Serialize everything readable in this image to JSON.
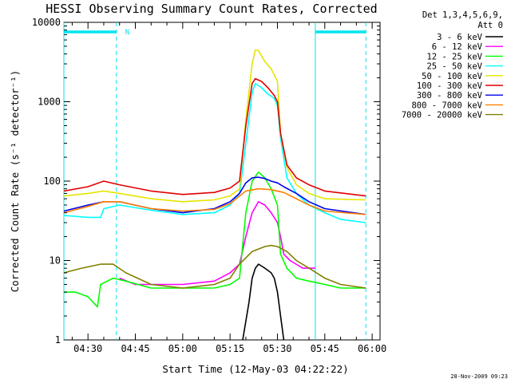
{
  "chart_data": {
    "type": "line",
    "title": "HESSI Observing Summary Count Rates, Corrected",
    "xlabel": "Start Time (12-May-03 04:22:22)",
    "ylabel": "Corrected Count Rate (s⁻¹ detector⁻¹)",
    "yscale": "log",
    "ylim": [
      1,
      10000
    ],
    "xlim": [
      "04:22:22",
      "06:02:30"
    ],
    "x_ticks": [
      "04:30",
      "04:45",
      "05:00",
      "05:15",
      "05:30",
      "05:45",
      "06:00"
    ],
    "y_ticks": [
      "1",
      "10",
      "100",
      "1000",
      "10000"
    ],
    "legend_placement": "right",
    "legend_header": [
      "Det 1,3,4,5,6,9,",
      "Att 0"
    ],
    "timestamp": "28-Nov-2009 09:23",
    "annotations": {
      "bars": [
        {
          "label": "",
          "start": "04:22:22",
          "end": "04:39:00",
          "color": "#00e5ee"
        },
        {
          "label": "N",
          "start": "04:40:30",
          "end": "04:40:30",
          "color": "#00e5ee"
        },
        {
          "label": "",
          "start": "05:42:00",
          "end": "05:58:00",
          "color": "#00e5ee"
        }
      ],
      "vlines_solid": [
        "04:22:22",
        "05:42:00"
      ],
      "vlines_dashed": [
        "04:39:00",
        "05:58:00"
      ]
    },
    "series": [
      {
        "name": "3 - 6 keV",
        "color": "#000000",
        "points": [
          [
            "05:19",
            1
          ],
          [
            "05:21",
            3
          ],
          [
            "05:22",
            6
          ],
          [
            "05:23",
            8
          ],
          [
            "05:24",
            9
          ],
          [
            "05:25",
            8.5
          ],
          [
            "05:26",
            8
          ],
          [
            "05:27",
            7.5
          ],
          [
            "05:28",
            7
          ],
          [
            "05:29",
            6
          ],
          [
            "05:30",
            4
          ],
          [
            "05:31",
            2
          ],
          [
            "05:32",
            1
          ]
        ]
      },
      {
        "name": "6 - 12 keV",
        "color": "#ff00ff",
        "points": [
          [
            "04:40",
            6
          ],
          [
            "04:45",
            5
          ],
          [
            "04:50",
            5
          ],
          [
            "05:00",
            5
          ],
          [
            "05:10",
            5.5
          ],
          [
            "05:15",
            7
          ],
          [
            "05:18",
            9
          ],
          [
            "05:20",
            20
          ],
          [
            "05:22",
            40
          ],
          [
            "05:24",
            55
          ],
          [
            "05:26",
            50
          ],
          [
            "05:28",
            40
          ],
          [
            "05:30",
            30
          ],
          [
            "05:31",
            20
          ],
          [
            "05:32",
            12
          ],
          [
            "05:34",
            10
          ],
          [
            "05:38",
            8
          ],
          [
            "05:42",
            8
          ]
        ]
      },
      {
        "name": "12 - 25 keV",
        "color": "#00ff00",
        "points": [
          [
            "04:22:22",
            4
          ],
          [
            "04:26",
            4
          ],
          [
            "04:30",
            3.5
          ],
          [
            "04:33",
            2.6
          ],
          [
            "04:34",
            5
          ],
          [
            "04:38",
            6
          ],
          [
            "04:42",
            5.5
          ],
          [
            "04:50",
            4.5
          ],
          [
            "05:00",
            4.5
          ],
          [
            "05:10",
            4.5
          ],
          [
            "05:15",
            5
          ],
          [
            "05:18",
            6
          ],
          [
            "05:20",
            40
          ],
          [
            "05:22",
            100
          ],
          [
            "05:24",
            130
          ],
          [
            "05:26",
            110
          ],
          [
            "05:28",
            80
          ],
          [
            "05:30",
            50
          ],
          [
            "05:31",
            12
          ],
          [
            "05:33",
            8
          ],
          [
            "05:36",
            6
          ],
          [
            "05:40",
            5.5
          ],
          [
            "05:45",
            5
          ],
          [
            "05:50",
            4.5
          ],
          [
            "05:58",
            4.5
          ]
        ]
      },
      {
        "name": "25 - 50 keV",
        "color": "#00ffff",
        "points": [
          [
            "04:22:22",
            37
          ],
          [
            "04:30",
            35
          ],
          [
            "04:34",
            35
          ],
          [
            "04:35",
            45
          ],
          [
            "04:40",
            50
          ],
          [
            "04:50",
            43
          ],
          [
            "05:00",
            38
          ],
          [
            "05:10",
            40
          ],
          [
            "05:15",
            50
          ],
          [
            "05:18",
            70
          ],
          [
            "05:20",
            300
          ],
          [
            "05:22",
            1300
          ],
          [
            "05:23",
            1700
          ],
          [
            "05:25",
            1500
          ],
          [
            "05:27",
            1250
          ],
          [
            "05:29",
            1100
          ],
          [
            "05:30",
            900
          ],
          [
            "05:31",
            350
          ],
          [
            "05:33",
            110
          ],
          [
            "05:36",
            70
          ],
          [
            "05:40",
            50
          ],
          [
            "05:45",
            40
          ],
          [
            "05:50",
            33
          ],
          [
            "05:58",
            30
          ]
        ]
      },
      {
        "name": "50 - 100 keV",
        "color": "#e5e500",
        "points": [
          [
            "04:22:22",
            65
          ],
          [
            "04:30",
            70
          ],
          [
            "04:35",
            75
          ],
          [
            "04:40",
            70
          ],
          [
            "04:50",
            60
          ],
          [
            "05:00",
            55
          ],
          [
            "05:10",
            58
          ],
          [
            "05:15",
            65
          ],
          [
            "05:18",
            80
          ],
          [
            "05:20",
            600
          ],
          [
            "05:22",
            3000
          ],
          [
            "05:23",
            4500
          ],
          [
            "05:24",
            4400
          ],
          [
            "05:26",
            3200
          ],
          [
            "05:28",
            2600
          ],
          [
            "05:30",
            1800
          ],
          [
            "05:31",
            400
          ],
          [
            "05:33",
            150
          ],
          [
            "05:36",
            90
          ],
          [
            "05:40",
            70
          ],
          [
            "05:45",
            60
          ],
          [
            "05:58",
            58
          ]
        ]
      },
      {
        "name": "100 - 300 keV",
        "color": "#e00000",
        "points": [
          [
            "04:22:22",
            75
          ],
          [
            "04:30",
            85
          ],
          [
            "04:35",
            100
          ],
          [
            "04:40",
            90
          ],
          [
            "04:50",
            75
          ],
          [
            "05:00",
            68
          ],
          [
            "05:10",
            72
          ],
          [
            "05:15",
            82
          ],
          [
            "05:18",
            100
          ],
          [
            "05:20",
            500
          ],
          [
            "05:22",
            1700
          ],
          [
            "05:23",
            1950
          ],
          [
            "05:25",
            1800
          ],
          [
            "05:27",
            1500
          ],
          [
            "05:29",
            1200
          ],
          [
            "05:30",
            1000
          ],
          [
            "05:31",
            400
          ],
          [
            "05:33",
            160
          ],
          [
            "05:36",
            110
          ],
          [
            "05:40",
            90
          ],
          [
            "05:45",
            75
          ],
          [
            "05:58",
            65
          ]
        ]
      },
      {
        "name": "300 - 800 keV",
        "color": "#0000ee",
        "points": [
          [
            "04:22:22",
            42
          ],
          [
            "04:30",
            50
          ],
          [
            "04:35",
            55
          ],
          [
            "04:40",
            55
          ],
          [
            "04:50",
            45
          ],
          [
            "05:00",
            40
          ],
          [
            "05:10",
            45
          ],
          [
            "05:15",
            55
          ],
          [
            "05:18",
            70
          ],
          [
            "05:20",
            95
          ],
          [
            "05:22",
            110
          ],
          [
            "05:24",
            112
          ],
          [
            "05:26",
            108
          ],
          [
            "05:28",
            100
          ],
          [
            "05:30",
            95
          ],
          [
            "05:32",
            85
          ],
          [
            "05:36",
            70
          ],
          [
            "05:40",
            55
          ],
          [
            "05:45",
            45
          ],
          [
            "05:58",
            38
          ]
        ]
      },
      {
        "name": "800 - 7000 keV",
        "color": "#ff7f00",
        "points": [
          [
            "04:22:22",
            40
          ],
          [
            "04:30",
            48
          ],
          [
            "04:35",
            55
          ],
          [
            "04:40",
            55
          ],
          [
            "04:50",
            45
          ],
          [
            "05:00",
            42
          ],
          [
            "05:10",
            44
          ],
          [
            "05:15",
            52
          ],
          [
            "05:18",
            65
          ],
          [
            "05:20",
            75
          ],
          [
            "05:24",
            80
          ],
          [
            "05:28",
            78
          ],
          [
            "05:32",
            72
          ],
          [
            "05:36",
            60
          ],
          [
            "05:40",
            50
          ],
          [
            "05:45",
            42
          ],
          [
            "05:58",
            38
          ]
        ]
      },
      {
        "name": "7000 - 20000 keV",
        "color": "#808000",
        "points": [
          [
            "04:22:22",
            7
          ],
          [
            "04:28",
            8
          ],
          [
            "04:34",
            9
          ],
          [
            "04:38",
            9
          ],
          [
            "04:42",
            7
          ],
          [
            "04:50",
            5
          ],
          [
            "05:00",
            4.5
          ],
          [
            "05:10",
            5
          ],
          [
            "05:15",
            6
          ],
          [
            "05:18",
            9
          ],
          [
            "05:22",
            13
          ],
          [
            "05:26",
            15
          ],
          [
            "05:28",
            15.5
          ],
          [
            "05:30",
            15
          ],
          [
            "05:33",
            13
          ],
          [
            "05:36",
            10
          ],
          [
            "05:40",
            8
          ],
          [
            "05:45",
            6
          ],
          [
            "05:50",
            5
          ],
          [
            "05:58",
            4.5
          ]
        ]
      }
    ]
  }
}
